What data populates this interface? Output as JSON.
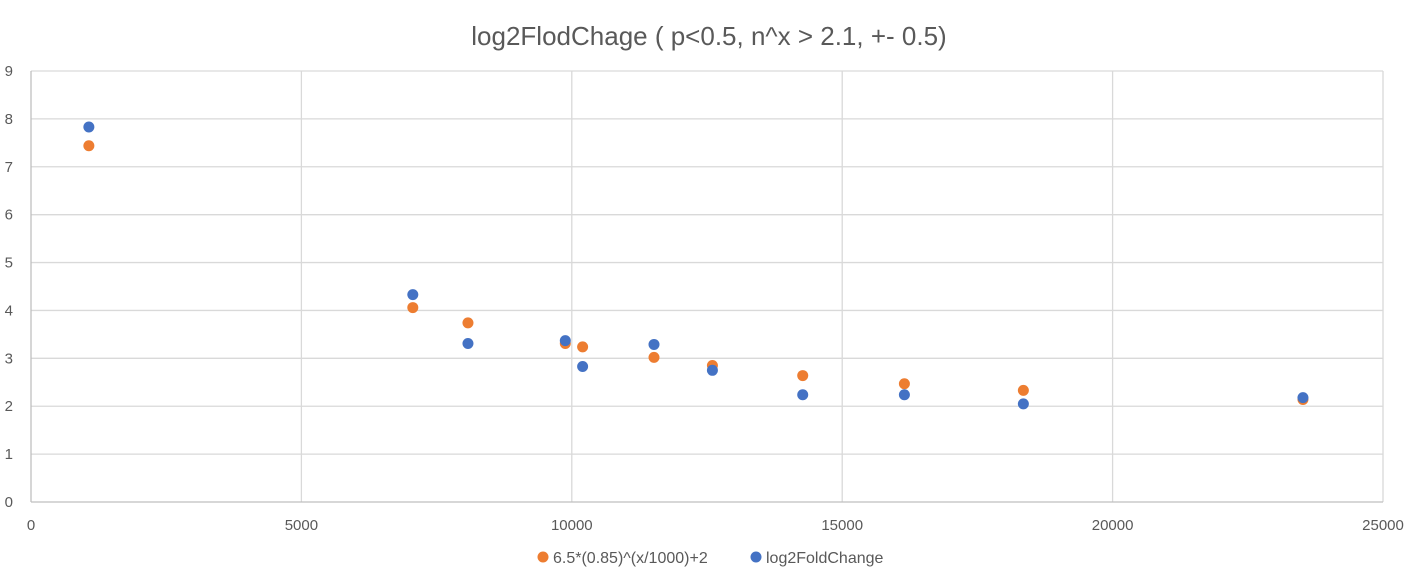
{
  "chart_data": {
    "type": "scatter",
    "title": "log2FlodChage ( p<0.5, n^x > 2.1, +- 0.5)",
    "xlabel": "",
    "ylabel": "",
    "xlim": [
      0,
      25000
    ],
    "ylim": [
      0,
      9
    ],
    "x_ticks": [
      0,
      5000,
      10000,
      15000,
      20000,
      25000
    ],
    "y_ticks": [
      0,
      1,
      2,
      3,
      4,
      5,
      6,
      7,
      8,
      9
    ],
    "x_tick_labels": [
      "0",
      "5000",
      "10000",
      "15000",
      "20000",
      "25000"
    ],
    "y_tick_labels": [
      "0",
      "1",
      "2",
      "3",
      "4",
      "5",
      "6",
      "7",
      "8",
      "9"
    ],
    "grid": true,
    "legend_position": "bottom",
    "series": [
      {
        "name": "6.5*(0.85)^(x/1000)+2",
        "color": "#ED7D31",
        "points": [
          {
            "x": 1070,
            "y": 7.44
          },
          {
            "x": 7060,
            "y": 4.06
          },
          {
            "x": 8080,
            "y": 3.74
          },
          {
            "x": 9880,
            "y": 3.31
          },
          {
            "x": 10200,
            "y": 3.24
          },
          {
            "x": 11520,
            "y": 3.02
          },
          {
            "x": 12600,
            "y": 2.85
          },
          {
            "x": 14270,
            "y": 2.64
          },
          {
            "x": 16150,
            "y": 2.47
          },
          {
            "x": 18350,
            "y": 2.33
          },
          {
            "x": 23520,
            "y": 2.14
          }
        ]
      },
      {
        "name": "log2FoldChange",
        "color": "#4472C4",
        "points": [
          {
            "x": 1070,
            "y": 7.83
          },
          {
            "x": 7060,
            "y": 4.33
          },
          {
            "x": 8080,
            "y": 3.31
          },
          {
            "x": 9880,
            "y": 3.37
          },
          {
            "x": 10200,
            "y": 2.83
          },
          {
            "x": 11520,
            "y": 3.29
          },
          {
            "x": 12600,
            "y": 2.75
          },
          {
            "x": 14270,
            "y": 2.24
          },
          {
            "x": 16150,
            "y": 2.24
          },
          {
            "x": 18350,
            "y": 2.05
          },
          {
            "x": 23520,
            "y": 2.18
          }
        ]
      }
    ]
  }
}
